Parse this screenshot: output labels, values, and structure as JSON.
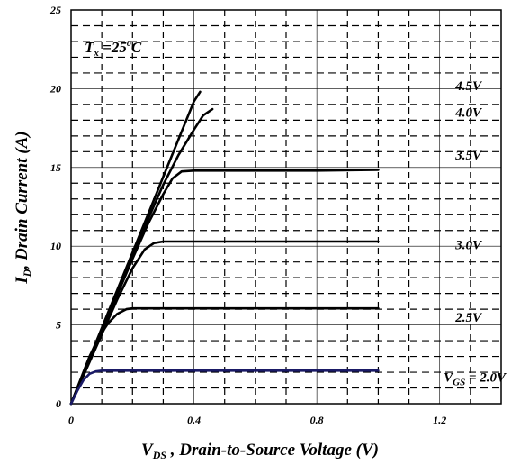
{
  "chart_data": {
    "type": "line",
    "title": "",
    "xlabel_main": "V",
    "xlabel_sub": "DS",
    "xlabel_rest": " , Drain-to-Source Voltage (V)",
    "ylabel_main": "I",
    "ylabel_sub": "D",
    "ylabel_rest": ", Drain Current (A)",
    "xlim": [
      0,
      1.4
    ],
    "ylim": [
      0,
      25
    ],
    "x_ticks": [
      0,
      0.4,
      0.8,
      1.2
    ],
    "x_tick_labels": [
      "0",
      "0.4",
      "0.8",
      "1.2"
    ],
    "y_ticks": [
      0,
      5,
      10,
      15,
      20,
      25
    ],
    "y_tick_labels": [
      "0",
      "5",
      "10",
      "15",
      "20",
      "25"
    ],
    "grid": true,
    "annotation": {
      "T": "T",
      "sub": "x",
      "rest": " =25",
      "sup": "o",
      "unit": "C"
    },
    "series": [
      {
        "name": "4.5V",
        "label_y": 20.2,
        "color": "#000000",
        "x": [
          0,
          0.05,
          0.1,
          0.15,
          0.2,
          0.25,
          0.3,
          0.35,
          0.4,
          0.42
        ],
        "y": [
          0,
          2.4,
          4.8,
          7.2,
          9.6,
          12.0,
          14.4,
          16.8,
          19.2,
          19.8
        ]
      },
      {
        "name": "4.0V",
        "label_y": 18.5,
        "color": "#000000",
        "x": [
          0,
          0.05,
          0.1,
          0.15,
          0.2,
          0.25,
          0.3,
          0.35,
          0.4,
          0.43,
          0.46
        ],
        "y": [
          0,
          2.35,
          4.7,
          7.05,
          9.4,
          11.7,
          13.9,
          15.8,
          17.4,
          18.3,
          18.7
        ]
      },
      {
        "name": "3.5V",
        "label_y": 15.8,
        "color": "#000000",
        "x": [
          0,
          0.05,
          0.1,
          0.15,
          0.2,
          0.25,
          0.3,
          0.33,
          0.36,
          0.4,
          0.6,
          0.8,
          1.0
        ],
        "y": [
          0,
          2.3,
          4.6,
          6.9,
          9.2,
          11.4,
          13.3,
          14.3,
          14.75,
          14.8,
          14.8,
          14.8,
          14.85
        ]
      },
      {
        "name": "3.0V",
        "label_y": 10.1,
        "color": "#000000",
        "x": [
          0,
          0.05,
          0.1,
          0.15,
          0.2,
          0.24,
          0.27,
          0.3,
          0.4,
          0.6,
          0.8,
          1.0
        ],
        "y": [
          0,
          2.2,
          4.4,
          6.6,
          8.6,
          9.8,
          10.2,
          10.3,
          10.3,
          10.3,
          10.3,
          10.3
        ]
      },
      {
        "name": "2.5V",
        "label_y": 5.5,
        "color": "#000000",
        "x": [
          0,
          0.03,
          0.06,
          0.09,
          0.12,
          0.15,
          0.18,
          0.2,
          0.3,
          0.6,
          1.0
        ],
        "y": [
          0,
          1.5,
          3.0,
          4.2,
          5.1,
          5.7,
          6.0,
          6.05,
          6.05,
          6.05,
          6.05
        ]
      },
      {
        "name": "V",
        "name_sub": "GS",
        "name_rest": " = 2.0V",
        "label_y": 1.7,
        "color": "#1a1a66",
        "x": [
          0,
          0.02,
          0.04,
          0.06,
          0.08,
          0.1,
          0.12,
          0.3,
          0.6,
          1.0
        ],
        "y": [
          0,
          0.8,
          1.5,
          1.9,
          2.05,
          2.1,
          2.1,
          2.1,
          2.1,
          2.1
        ]
      }
    ]
  }
}
